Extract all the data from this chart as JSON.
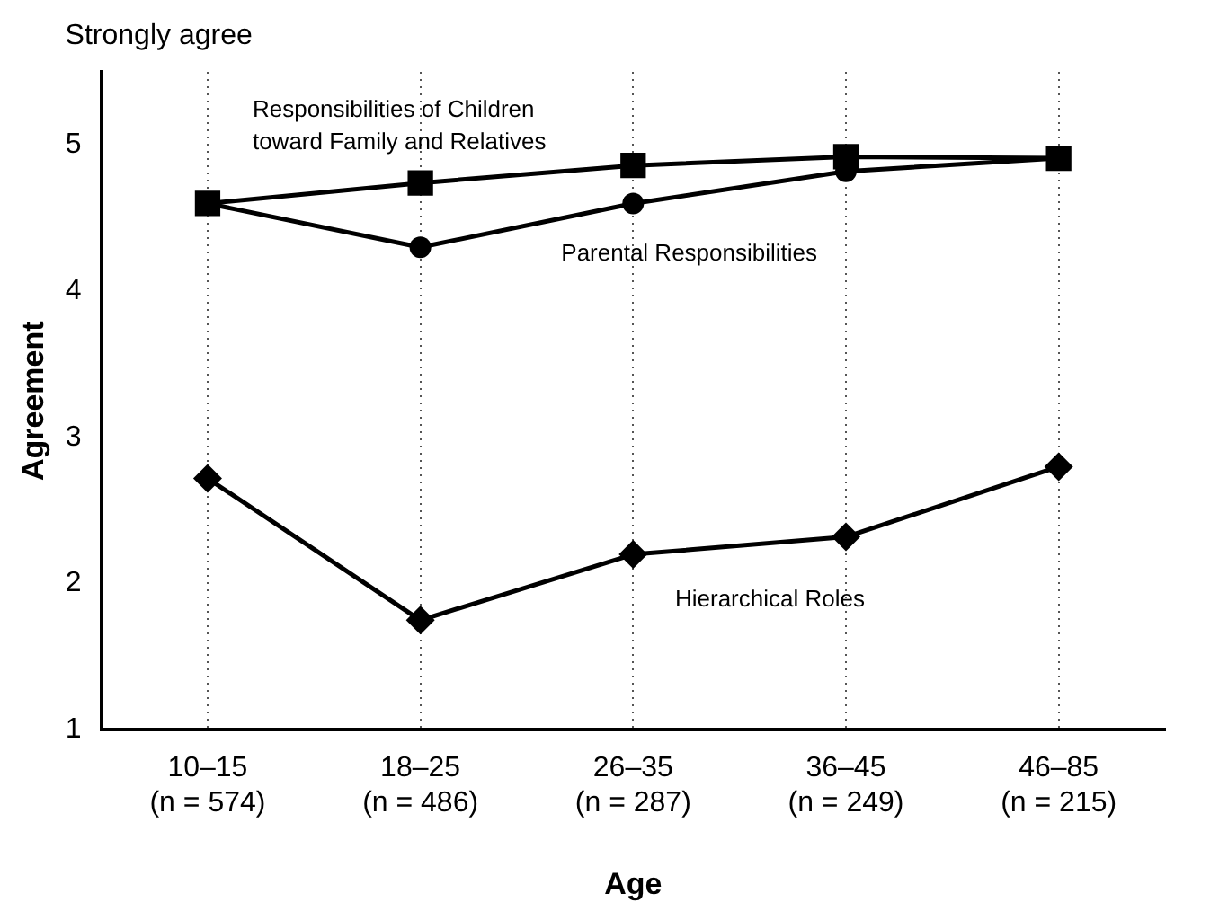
{
  "chart_data": {
    "type": "line",
    "xlabel": "Age",
    "ylabel": "Agreement",
    "annotations": [
      "Strongly agree"
    ],
    "categories": [
      "10–15\n(n = 574)",
      "18–25\n(n = 486)",
      "26–35\n(n = 287)",
      "36–45\n(n = 249)",
      "46–85\n(n = 215)"
    ],
    "series": [
      {
        "name": "Responsibilities of Children\ntoward Family and Relatives",
        "color": "#000000",
        "marker": "square",
        "values": [
          4.6,
          4.74,
          4.86,
          4.92,
          4.91
        ]
      },
      {
        "name": "Parental Responsibilities",
        "color": "#000000",
        "marker": "circle",
        "values": [
          4.6,
          4.3,
          4.6,
          4.82,
          4.91
        ]
      },
      {
        "name": "Hierarchical Roles",
        "color": "#000000",
        "marker": "diamond",
        "values": [
          2.72,
          1.75,
          2.2,
          2.32,
          2.8
        ]
      }
    ],
    "ylim": [
      1,
      5.5
    ],
    "yticks": [
      1,
      2,
      3,
      4,
      5
    ],
    "grid": "x",
    "legend": false
  }
}
